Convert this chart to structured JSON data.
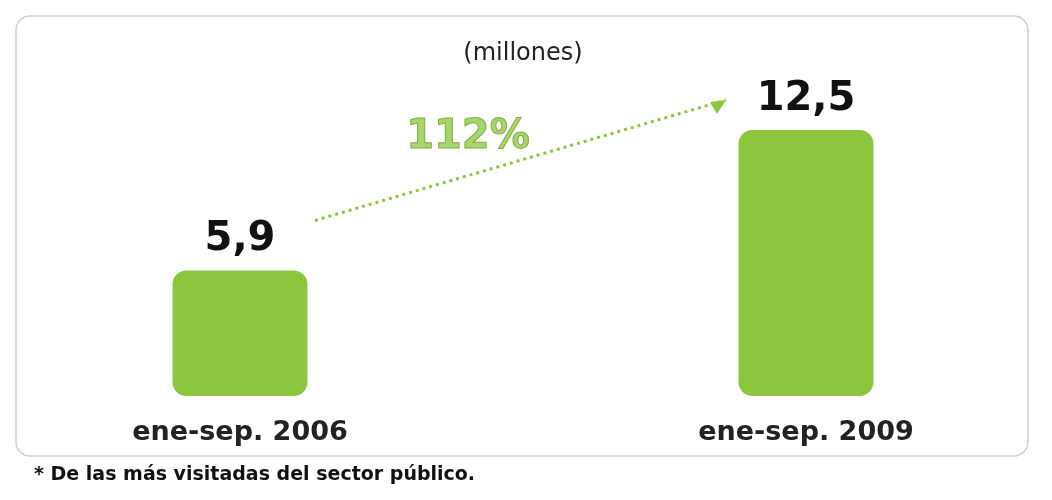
{
  "chart_data": {
    "type": "bar",
    "title": "(millones)",
    "categories": [
      "ene-sep. 2006",
      "ene-sep. 2009"
    ],
    "values": [
      5.9,
      12.5
    ],
    "value_labels": [
      "5,9",
      "12,5"
    ],
    "color": "#8cc63e",
    "annotations": [
      "112%",
      "* De las más visitadas del sector público."
    ]
  }
}
